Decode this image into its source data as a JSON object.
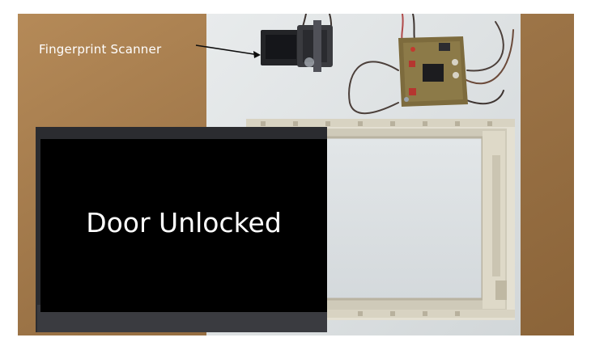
{
  "photo": {
    "subject": "fingerprint door lock prototype"
  },
  "callout": {
    "label": "Fingerprint Scanner"
  },
  "overlay": {
    "status": "Door Unlocked"
  },
  "colors": {
    "wood": "#a27a4c",
    "board": "#dfe3e4",
    "overlay": "#000000",
    "text": "#ffffff",
    "pcb": "#7d6b3d"
  }
}
